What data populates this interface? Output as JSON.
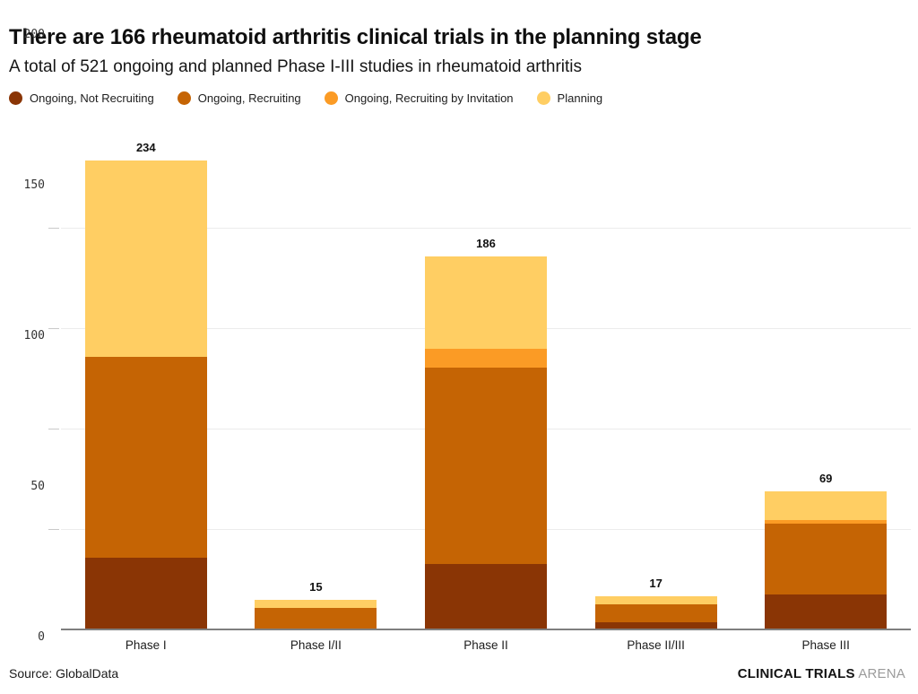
{
  "header": {
    "title": "There are 166 rheumatoid arthritis clinical trials in the planning stage",
    "subtitle": "A total of 521 ongoing and planned Phase I-III studies in rheumatoid arthritis"
  },
  "chart_data": {
    "type": "bar",
    "stacked": true,
    "title": "There are 166 rheumatoid arthritis clinical trials in the planning stage",
    "subtitle": "A total of 521 ongoing and planned Phase I-III studies in rheumatoid arthritis",
    "categories": [
      "Phase I",
      "Phase I/II",
      "Phase II",
      "Phase II/III",
      "Phase III"
    ],
    "series": [
      {
        "name": "Ongoing, Not Recruiting",
        "color": "#8A3505",
        "values": [
          36,
          0,
          33,
          4,
          18
        ]
      },
      {
        "name": "Ongoing, Recruiting",
        "color": "#C56404",
        "values": [
          100,
          11,
          98,
          9,
          35
        ]
      },
      {
        "name": "Ongoing, Recruiting by Invitation",
        "color": "#FB9B25",
        "values": [
          0,
          0,
          9,
          0,
          2
        ]
      },
      {
        "name": "Planning",
        "color": "#FFCE63",
        "values": [
          98,
          4,
          46,
          4,
          14
        ]
      }
    ],
    "totals": [
      234,
      15,
      186,
      17,
      69
    ],
    "yticks": [
      0,
      50,
      100,
      150,
      200
    ],
    "ylim": [
      0,
      244
    ],
    "xlabel": "",
    "ylabel": "",
    "grid": true,
    "legend_position": "top"
  },
  "footer": {
    "source": "Source: GlobalData",
    "brand_bold": "CLINICAL TRIALS",
    "brand_light": "ARENA"
  }
}
